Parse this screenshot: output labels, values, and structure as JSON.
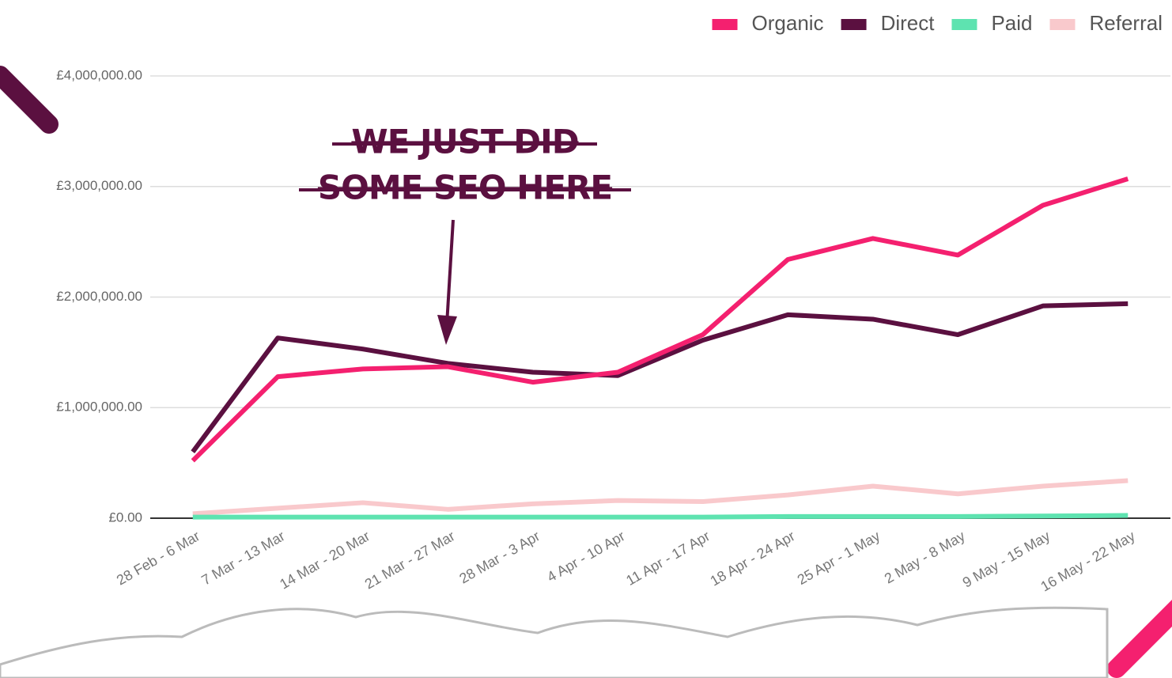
{
  "chart_data": {
    "type": "line",
    "categories": [
      "28 Feb - 6 Mar",
      "7 Mar - 13 Mar",
      "14 Mar - 20 Mar",
      "21 Mar - 27 Mar",
      "28 Mar - 3 Apr",
      "4 Apr - 10 Apr",
      "11 Apr - 17 Apr",
      "18 Apr - 24 Apr",
      "25 Apr - 1 May",
      "2 May - 8 May",
      "9 May - 15 May",
      "16 May - 22 May"
    ],
    "series": [
      {
        "name": "Organic",
        "color": "#f4206f",
        "values": [
          520000,
          1280000,
          1350000,
          1370000,
          1230000,
          1320000,
          1660000,
          2340000,
          2530000,
          2380000,
          2830000,
          3070000
        ]
      },
      {
        "name": "Direct",
        "color": "#5b1040",
        "values": [
          600000,
          1630000,
          1530000,
          1400000,
          1320000,
          1290000,
          1610000,
          1840000,
          1800000,
          1660000,
          1920000,
          1940000
        ]
      },
      {
        "name": "Paid",
        "color": "#5ee3b0",
        "values": [
          10000,
          10000,
          10000,
          10000,
          10000,
          10000,
          10000,
          15000,
          15000,
          15000,
          20000,
          25000
        ]
      },
      {
        "name": "Referral",
        "color": "#f9c9cc",
        "values": [
          40000,
          90000,
          140000,
          80000,
          130000,
          160000,
          150000,
          210000,
          290000,
          220000,
          290000,
          340000
        ]
      }
    ],
    "ylim": [
      0,
      4000000
    ],
    "yticks": [
      {
        "value": 0,
        "label": "£0.00"
      },
      {
        "value": 1000000,
        "label": "£1,000,000.00"
      },
      {
        "value": 2000000,
        "label": "£2,000,000.00"
      },
      {
        "value": 3000000,
        "label": "£3,000,000.00"
      },
      {
        "value": 4000000,
        "label": "£4,000,000.00"
      }
    ],
    "grid": true,
    "legend": "top-right",
    "annotations": [
      "WE JUST DID",
      "SOME SEO HERE"
    ]
  }
}
